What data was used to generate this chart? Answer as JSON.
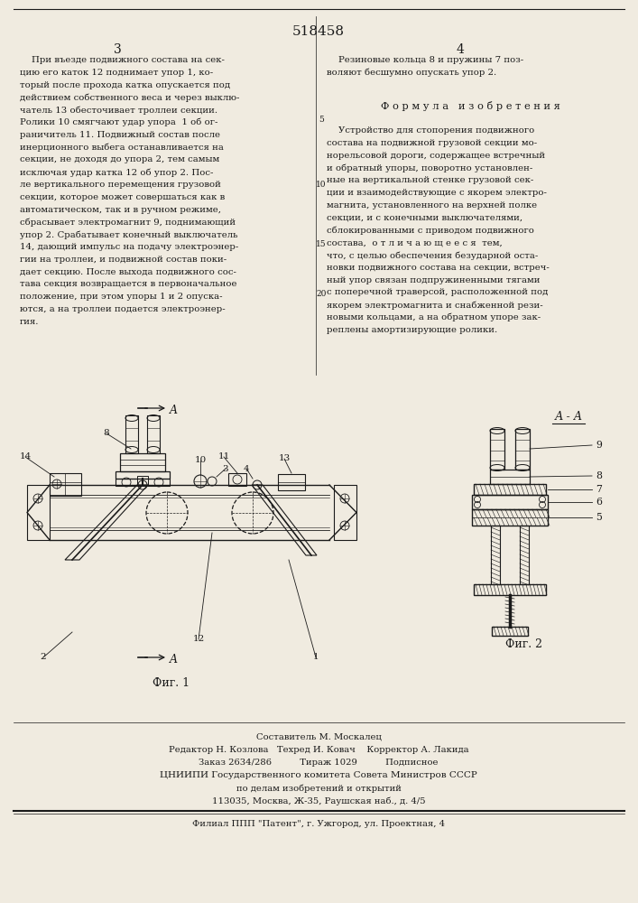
{
  "patent_number": "518458",
  "page_left_num": "3",
  "page_right_num": "4",
  "line_number_5": "5",
  "line_number_10": "10",
  "line_number_15": "15",
  "line_number_20": "20",
  "left_column_text": [
    "    При въезде подвижного состава на сек-",
    "цию его каток 12 поднимает упор 1, ко-",
    "торый после прохода катка опускается под",
    "действием собственного веса и через выклю-",
    "чатель 13 обесточивает троллеи секции.",
    "Ролики 10 смягчают удар упора  1 об ог-",
    "раничитель 11. Подвижный состав после",
    "инерционного выбега останавливается на",
    "секции, не доходя до упора 2, тем самым",
    "исключая удар катка 12 об упор 2. Пос-",
    "ле вертикального перемещения грузовой",
    "секции, которое может совершаться как в",
    "автоматическом, так и в ручном режиме,",
    "сбрасывает электромагнит 9, поднимающий",
    "упор 2. Срабатывает конечный выключатель",
    "14, дающий импульс на подачу электроэнер-",
    "гии на троллеи, и подвижной состав поки-",
    "дает секцию. После выхода подвижного сос-",
    "тава секция возвращается в первоначальное",
    "положение, при этом упоры 1 и 2 опуска-",
    "ются, а на троллеи подается электроэнер-",
    "гия."
  ],
  "right_column_text_top": [
    "    Резиновые кольца 8 и пружины 7 поз-",
    "воляют бесшумно опускать упор 2."
  ],
  "formula_title": "Ф о р м у л а   и з о б р е т е н и я",
  "right_column_text_body": [
    "    Устройство для стопорения подвижного",
    "состава на подвижной грузовой секции мо-",
    "норельсовой дороги, содержащее встречный",
    "и обратный упоры, поворотно установлен-",
    "ные на вертикальной стенке грузовой сек-",
    "ции и взаимодействующие с якорем электро-",
    "магнита, установленного на верхней полке",
    "секции, и с конечными выключателями,",
    "сблокированными с приводом подвижного",
    "состава,  о т л и ч а ю щ е е с я  тем,",
    "что, с целью обеспечения безударной оста-",
    "новки подвижного состава на секции, встреч-",
    "ный упор связан подпружиненными тягами",
    "с поперечной траверсой, расположенной под",
    "якорем электромагнита и снабженной рези-",
    "новыми кольцами, а на обратном упоре зак-",
    "реплены амортизирующие ролики."
  ],
  "fig1_label": "Фиг. 1",
  "fig2_label": "Фиг. 2",
  "section_label_AA": "А - А",
  "bottom_info": [
    "Составитель М. Москалец",
    "Редактор Н. Козлова   Техред И. Ковач    Корректор А. Лакида",
    "Заказ 2634/286          Тираж 1029          Подписное",
    "ЦНИИПИ Государственного комитета Совета Министров СССР",
    "по делам изобретений и открытий",
    "113035, Москва, Ж-35, Раушская наб., д. 4/5",
    "Филиал ППП \"Патент\", г. Ужгород, ул. Проектная, 4"
  ],
  "bg_color": "#f0ebe0",
  "text_color": "#1a1a1a",
  "line_color": "#1a1a1a"
}
